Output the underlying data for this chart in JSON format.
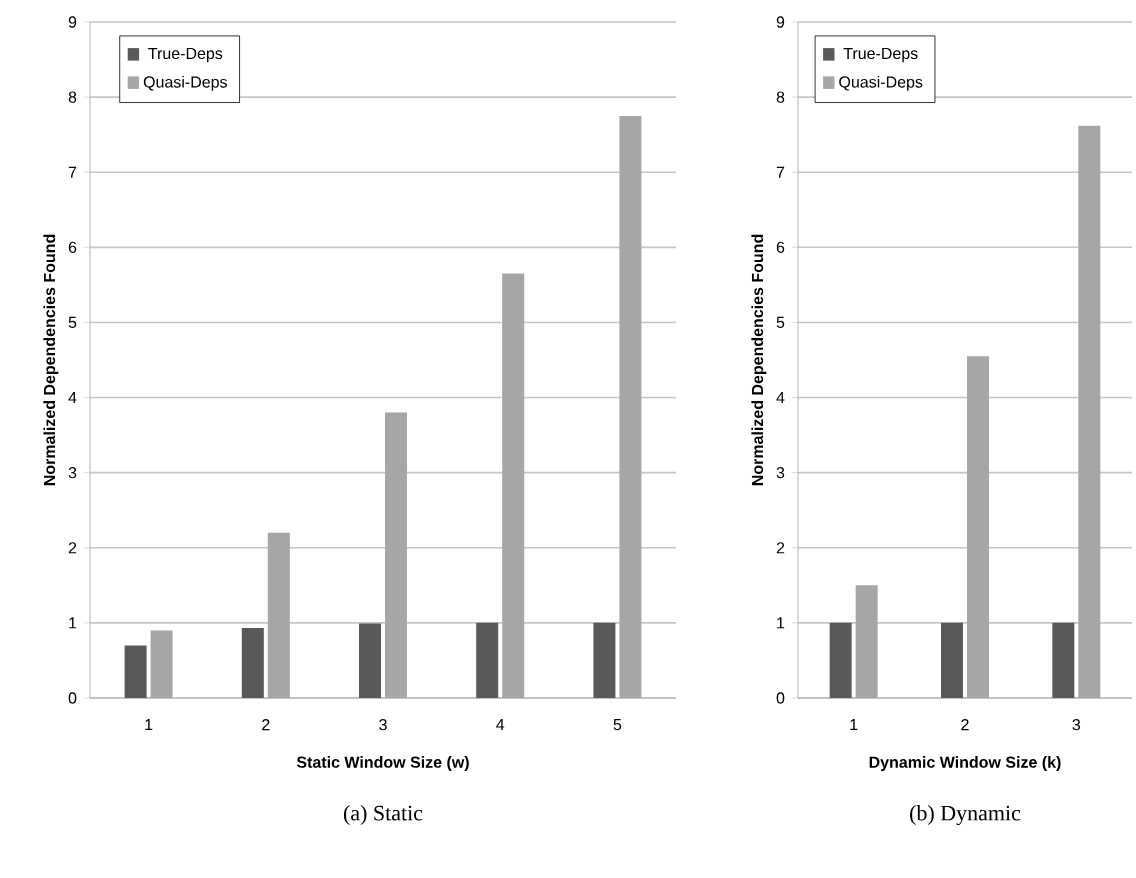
{
  "chart_data": [
    {
      "type": "bar",
      "xlabel": "Static Window Size (w)",
      "ylabel": "Normalized Dependencies Found",
      "categories": [
        "1",
        "2",
        "3",
        "4",
        "5"
      ],
      "series": [
        {
          "name": "True-Deps",
          "color": "#595959",
          "values": [
            0.7,
            0.93,
            0.99,
            1.0,
            1.0
          ]
        },
        {
          "name": "Quasi-Deps",
          "color": "#a6a6a6",
          "values": [
            0.9,
            2.2,
            3.8,
            5.65,
            7.75
          ]
        }
      ],
      "ylim": [
        0,
        9
      ],
      "yticks": [
        0,
        1,
        2,
        3,
        4,
        5,
        6,
        7,
        8,
        9
      ],
      "grid": "y",
      "legend": "top left",
      "annotations": [
        "(a) Static"
      ]
    },
    {
      "type": "bar",
      "xlabel": "Dynamic Window Size (k)",
      "ylabel": "Normalized Dependencies Found",
      "categories": [
        "1",
        "2",
        "3"
      ],
      "series": [
        {
          "name": "True-Deps",
          "color": "#595959",
          "values": [
            1.0,
            1.0,
            1.0
          ]
        },
        {
          "name": "Quasi-Deps",
          "color": "#a6a6a6",
          "values": [
            1.5,
            4.55,
            7.62
          ]
        }
      ],
      "ylim": [
        0,
        9
      ],
      "yticks": [
        0,
        1,
        2,
        3,
        4,
        5,
        6,
        7,
        8,
        9
      ],
      "grid": "y",
      "legend": "top left",
      "annotations": [
        "(b) Dynamic"
      ]
    }
  ]
}
